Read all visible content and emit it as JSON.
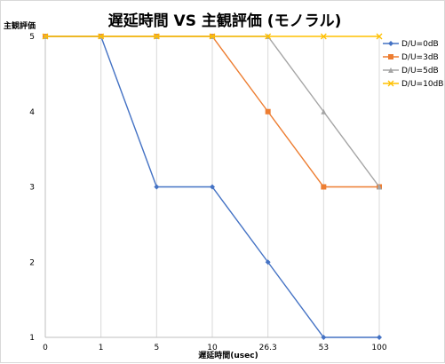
{
  "chart_data": {
    "type": "line",
    "title": "遅延時間 VS 主観評価 (モノラル)",
    "xlabel": "遅延時間(usec)",
    "ylabel": "主観評価",
    "categories": [
      "0",
      "1",
      "5",
      "10",
      "26.3",
      "53",
      "100"
    ],
    "ylim": [
      1,
      5
    ],
    "yticks": [
      1,
      2,
      3,
      4,
      5
    ],
    "grid": "vertical",
    "legend": "right",
    "series": [
      {
        "name": "D/U=0dB",
        "values": [
          5,
          5,
          3,
          3,
          2,
          1,
          1
        ],
        "color": "#4472c4",
        "marker": "diamond"
      },
      {
        "name": "D/U=3dB",
        "values": [
          5,
          5,
          5,
          5,
          4,
          3,
          3
        ],
        "color": "#ed7d31",
        "marker": "square"
      },
      {
        "name": "D/U=5dB",
        "values": [
          5,
          5,
          5,
          5,
          5,
          4,
          3
        ],
        "color": "#a5a5a5",
        "marker": "triangle"
      },
      {
        "name": "D/U=10dB",
        "values": [
          5,
          5,
          5,
          5,
          5,
          5,
          5
        ],
        "color": "#ffc000",
        "marker": "x"
      }
    ]
  }
}
